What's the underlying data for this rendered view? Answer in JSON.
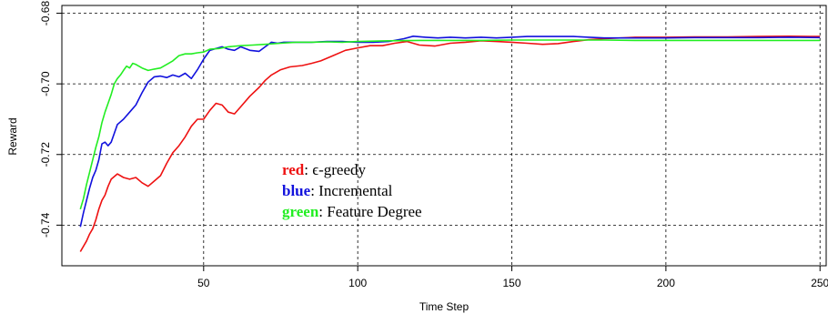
{
  "chart_data": {
    "type": "line",
    "title": "",
    "xlabel": "Time Step",
    "ylabel": "Reward",
    "xlim": [
      4,
      252
    ],
    "ylim": [
      -0.7515,
      -0.6778
    ],
    "xticks": [
      50,
      100,
      150,
      200,
      250
    ],
    "xtick_labels": [
      "50",
      "100",
      "150",
      "200",
      "250"
    ],
    "yticks": [
      -0.74,
      -0.72,
      -0.7,
      -0.68
    ],
    "ytick_labels": [
      "-0.74",
      "-0.72",
      "-0.70",
      "-0.68"
    ],
    "grid": true,
    "grid_style": "dotted",
    "legend_position": "center-left (inside plot)",
    "series": [
      {
        "key": "red",
        "color": "#ee1111",
        "points": [
          [
            10,
            -0.7475
          ],
          [
            12,
            -0.7445
          ],
          [
            13,
            -0.7425
          ],
          [
            14,
            -0.741
          ],
          [
            15,
            -0.7385
          ],
          [
            16,
            -0.7355
          ],
          [
            17,
            -0.733
          ],
          [
            18,
            -0.7315
          ],
          [
            19,
            -0.729
          ],
          [
            20,
            -0.727
          ],
          [
            22,
            -0.7255
          ],
          [
            24,
            -0.7265
          ],
          [
            26,
            -0.727
          ],
          [
            28,
            -0.7265
          ],
          [
            30,
            -0.728
          ],
          [
            32,
            -0.729
          ],
          [
            34,
            -0.7275
          ],
          [
            36,
            -0.726
          ],
          [
            38,
            -0.7225
          ],
          [
            40,
            -0.7195
          ],
          [
            42,
            -0.7175
          ],
          [
            44,
            -0.715
          ],
          [
            46,
            -0.712
          ],
          [
            48,
            -0.71
          ],
          [
            50,
            -0.71
          ],
          [
            52,
            -0.7075
          ],
          [
            54,
            -0.7055
          ],
          [
            56,
            -0.706
          ],
          [
            58,
            -0.708
          ],
          [
            60,
            -0.7085
          ],
          [
            62,
            -0.7065
          ],
          [
            65,
            -0.7035
          ],
          [
            68,
            -0.701
          ],
          [
            70,
            -0.699
          ],
          [
            72,
            -0.6975
          ],
          [
            75,
            -0.696
          ],
          [
            78,
            -0.6952
          ],
          [
            82,
            -0.6948
          ],
          [
            85,
            -0.6942
          ],
          [
            88,
            -0.6935
          ],
          [
            92,
            -0.692
          ],
          [
            96,
            -0.6905
          ],
          [
            100,
            -0.6898
          ],
          [
            104,
            -0.6892
          ],
          [
            108,
            -0.6892
          ],
          [
            112,
            -0.6885
          ],
          [
            116,
            -0.688
          ],
          [
            120,
            -0.689
          ],
          [
            125,
            -0.6893
          ],
          [
            130,
            -0.6885
          ],
          [
            135,
            -0.6882
          ],
          [
            140,
            -0.6878
          ],
          [
            145,
            -0.688
          ],
          [
            150,
            -0.6882
          ],
          [
            155,
            -0.6885
          ],
          [
            160,
            -0.6888
          ],
          [
            165,
            -0.6886
          ],
          [
            170,
            -0.688
          ],
          [
            175,
            -0.6875
          ],
          [
            180,
            -0.6872
          ],
          [
            190,
            -0.6868
          ],
          [
            200,
            -0.6868
          ],
          [
            210,
            -0.6867
          ],
          [
            220,
            -0.6867
          ],
          [
            230,
            -0.6866
          ],
          [
            240,
            -0.6865
          ],
          [
            250,
            -0.6866
          ]
        ]
      },
      {
        "key": "blue",
        "color": "#1111dd",
        "points": [
          [
            10,
            -0.7405
          ],
          [
            11,
            -0.7365
          ],
          [
            12,
            -0.733
          ],
          [
            13,
            -0.7295
          ],
          [
            14,
            -0.7265
          ],
          [
            15,
            -0.7245
          ],
          [
            16,
            -0.7215
          ],
          [
            17,
            -0.717
          ],
          [
            18,
            -0.7165
          ],
          [
            19,
            -0.7175
          ],
          [
            20,
            -0.7165
          ],
          [
            21,
            -0.714
          ],
          [
            22,
            -0.7115
          ],
          [
            24,
            -0.71
          ],
          [
            26,
            -0.708
          ],
          [
            28,
            -0.706
          ],
          [
            30,
            -0.7025
          ],
          [
            32,
            -0.6995
          ],
          [
            34,
            -0.698
          ],
          [
            36,
            -0.6978
          ],
          [
            38,
            -0.6982
          ],
          [
            40,
            -0.6975
          ],
          [
            42,
            -0.698
          ],
          [
            44,
            -0.697
          ],
          [
            46,
            -0.6985
          ],
          [
            48,
            -0.696
          ],
          [
            50,
            -0.693
          ],
          [
            52,
            -0.6905
          ],
          [
            54,
            -0.69
          ],
          [
            56,
            -0.6895
          ],
          [
            58,
            -0.6902
          ],
          [
            60,
            -0.6905
          ],
          [
            62,
            -0.6895
          ],
          [
            65,
            -0.6905
          ],
          [
            68,
            -0.6908
          ],
          [
            70,
            -0.6895
          ],
          [
            72,
            -0.6882
          ],
          [
            74,
            -0.6885
          ],
          [
            76,
            -0.6882
          ],
          [
            80,
            -0.6882
          ],
          [
            85,
            -0.6882
          ],
          [
            90,
            -0.688
          ],
          [
            95,
            -0.688
          ],
          [
            100,
            -0.6882
          ],
          [
            105,
            -0.6882
          ],
          [
            110,
            -0.688
          ],
          [
            115,
            -0.6872
          ],
          [
            118,
            -0.6865
          ],
          [
            122,
            -0.6868
          ],
          [
            126,
            -0.687
          ],
          [
            130,
            -0.6868
          ],
          [
            135,
            -0.687
          ],
          [
            140,
            -0.6868
          ],
          [
            145,
            -0.687
          ],
          [
            150,
            -0.6868
          ],
          [
            155,
            -0.6866
          ],
          [
            160,
            -0.6866
          ],
          [
            170,
            -0.6866
          ],
          [
            175,
            -0.6868
          ],
          [
            180,
            -0.687
          ],
          [
            190,
            -0.687
          ],
          [
            200,
            -0.687
          ],
          [
            210,
            -0.6869
          ],
          [
            220,
            -0.6869
          ],
          [
            230,
            -0.6869
          ],
          [
            240,
            -0.6868
          ],
          [
            250,
            -0.6869
          ]
        ]
      },
      {
        "key": "green",
        "color": "#22ee22",
        "points": [
          [
            10,
            -0.7355
          ],
          [
            11,
            -0.7325
          ],
          [
            12,
            -0.7285
          ],
          [
            13,
            -0.725
          ],
          [
            14,
            -0.7215
          ],
          [
            15,
            -0.718
          ],
          [
            16,
            -0.715
          ],
          [
            17,
            -0.711
          ],
          [
            18,
            -0.708
          ],
          [
            19,
            -0.7055
          ],
          [
            20,
            -0.703
          ],
          [
            21,
            -0.7
          ],
          [
            22,
            -0.6985
          ],
          [
            23,
            -0.6975
          ],
          [
            24,
            -0.6962
          ],
          [
            25,
            -0.695
          ],
          [
            26,
            -0.6955
          ],
          [
            27,
            -0.6942
          ],
          [
            28,
            -0.6945
          ],
          [
            30,
            -0.6955
          ],
          [
            32,
            -0.6962
          ],
          [
            34,
            -0.6958
          ],
          [
            36,
            -0.6955
          ],
          [
            38,
            -0.6945
          ],
          [
            40,
            -0.6935
          ],
          [
            42,
            -0.692
          ],
          [
            44,
            -0.6915
          ],
          [
            46,
            -0.6915
          ],
          [
            48,
            -0.6912
          ],
          [
            50,
            -0.691
          ],
          [
            52,
            -0.6902
          ],
          [
            55,
            -0.69
          ],
          [
            58,
            -0.6895
          ],
          [
            62,
            -0.6892
          ],
          [
            66,
            -0.689
          ],
          [
            70,
            -0.6888
          ],
          [
            75,
            -0.6885
          ],
          [
            80,
            -0.6882
          ],
          [
            85,
            -0.6882
          ],
          [
            90,
            -0.6881
          ],
          [
            95,
            -0.6882
          ],
          [
            100,
            -0.688
          ],
          [
            110,
            -0.6878
          ],
          [
            120,
            -0.6877
          ],
          [
            130,
            -0.6877
          ],
          [
            140,
            -0.6877
          ],
          [
            150,
            -0.6876
          ],
          [
            160,
            -0.6876
          ],
          [
            170,
            -0.6876
          ],
          [
            180,
            -0.6876
          ],
          [
            190,
            -0.6877
          ],
          [
            200,
            -0.6877
          ],
          [
            210,
            -0.6877
          ],
          [
            220,
            -0.6877
          ],
          [
            230,
            -0.6877
          ],
          [
            240,
            -0.6877
          ],
          [
            250,
            -0.6877
          ]
        ]
      }
    ],
    "legend": [
      {
        "key": "red",
        "color": "#ee1111",
        "sep": ":",
        "desc": "ϵ-greedy"
      },
      {
        "key": "blue",
        "color": "#1111dd",
        "sep": ":",
        "desc": "Incremental"
      },
      {
        "key": "green",
        "color": "#22ee22",
        "sep": ":",
        "desc": "Feature Degree"
      }
    ]
  }
}
